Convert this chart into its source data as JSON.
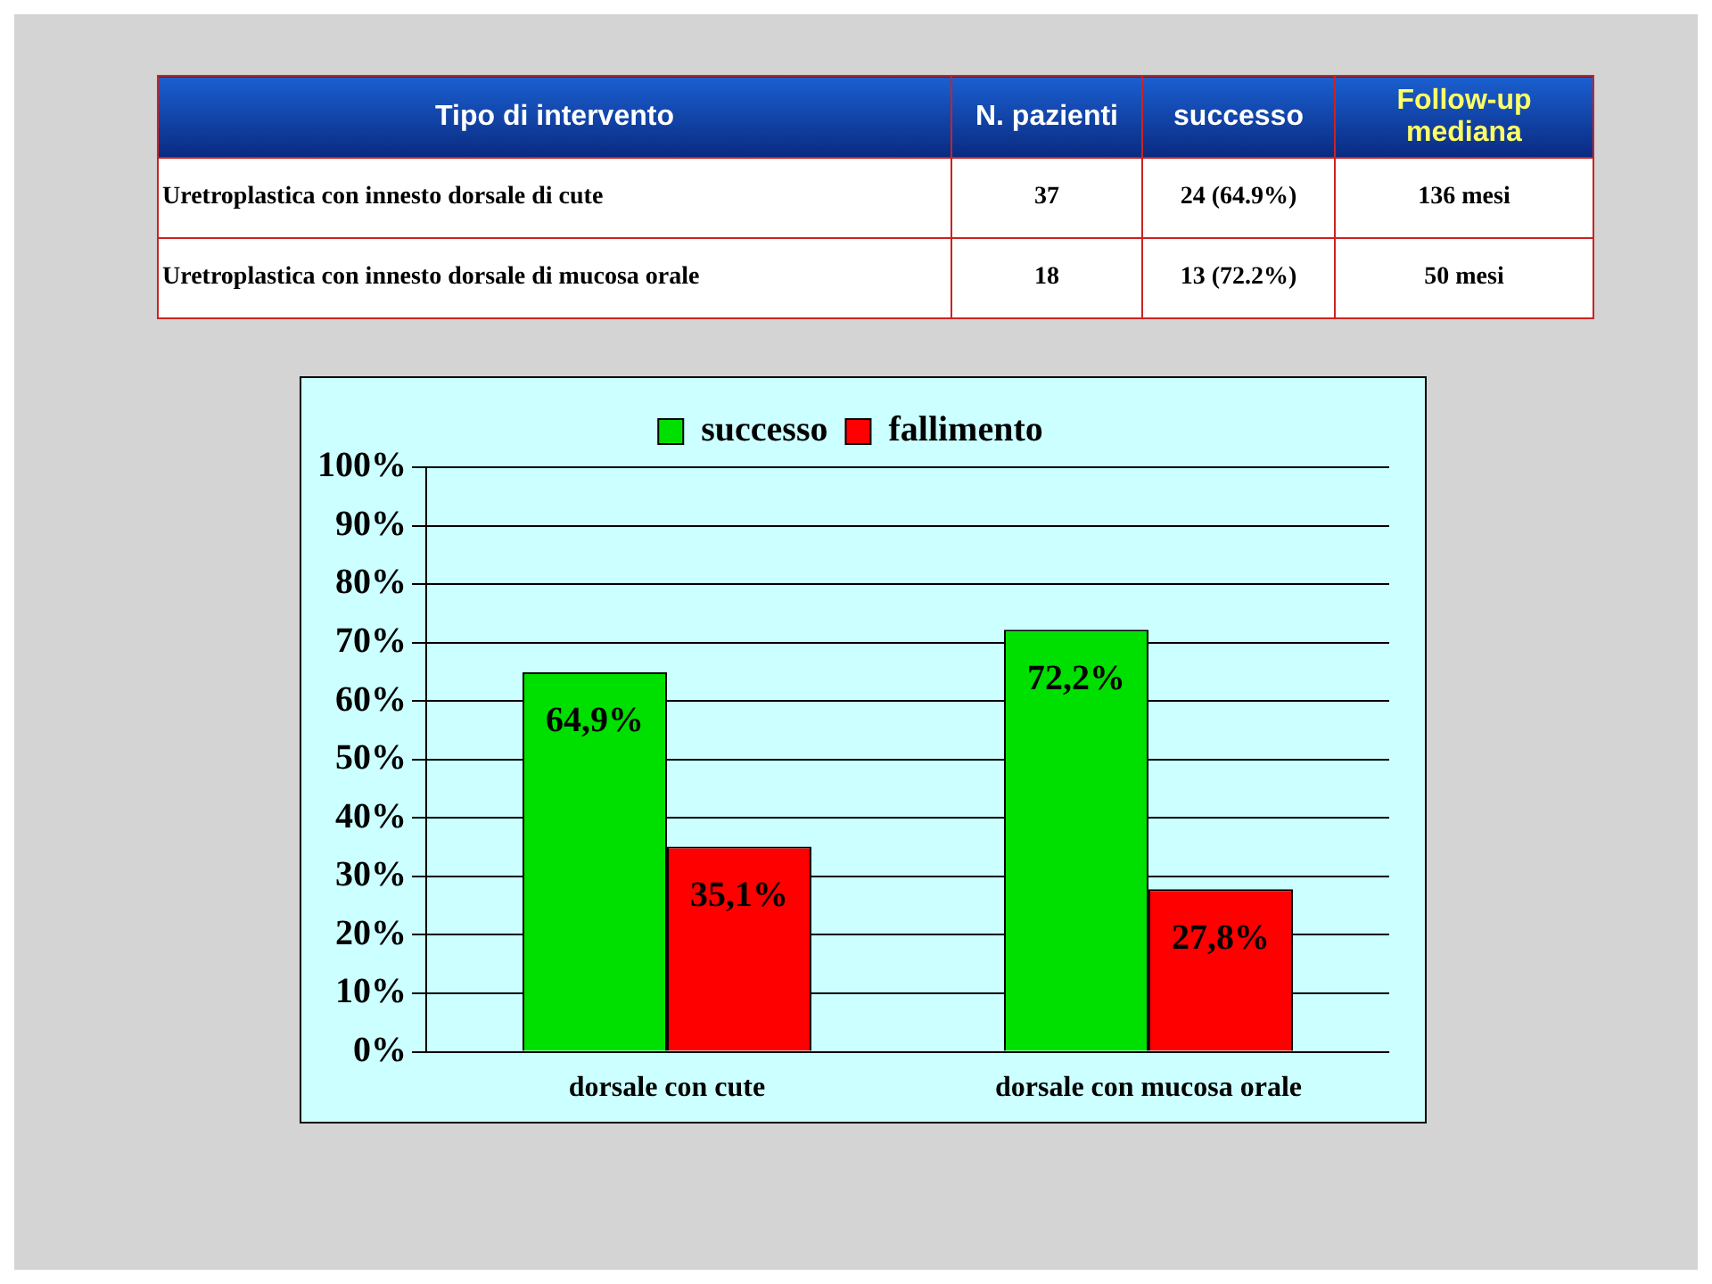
{
  "chart_data": [
    {
      "type": "other",
      "annotations": [
        "Tipo di intervento",
        "N. pazienti",
        "successo",
        "Follow-up mediana",
        "Uretroplastica con innesto dorsale di cute",
        "37",
        "24 (64.9%)",
        "136 mesi",
        "Uretroplastica con innesto dorsale di mucosa orale",
        "18",
        "13 (72.2%)",
        "50 mesi"
      ]
    },
    {
      "type": "bar",
      "categories": [
        "dorsale con cute",
        "dorsale con mucosa orale"
      ],
      "series": [
        {
          "name": "successo",
          "color": "#00e000",
          "values": [
            64.9,
            72.2
          ],
          "value_labels": [
            "64,9%",
            "72,2%"
          ]
        },
        {
          "name": "fallimento",
          "color": "#ff0000",
          "values": [
            35.1,
            27.8
          ],
          "value_labels": [
            "35,1%",
            "27,8%"
          ]
        }
      ],
      "ylim": [
        0,
        100
      ],
      "yticks": [
        {
          "value": 0,
          "label": "0%"
        },
        {
          "value": 10,
          "label": "10%"
        },
        {
          "value": 20,
          "label": "20%"
        },
        {
          "value": 30,
          "label": "30%"
        },
        {
          "value": 40,
          "label": "40%"
        },
        {
          "value": 50,
          "label": "50%"
        },
        {
          "value": 60,
          "label": "60%"
        },
        {
          "value": 70,
          "label": "70%"
        },
        {
          "value": 80,
          "label": "80%"
        },
        {
          "value": 90,
          "label": "90%"
        },
        {
          "value": 100,
          "label": "100%"
        }
      ],
      "grid": "y",
      "legend": "top"
    }
  ]
}
